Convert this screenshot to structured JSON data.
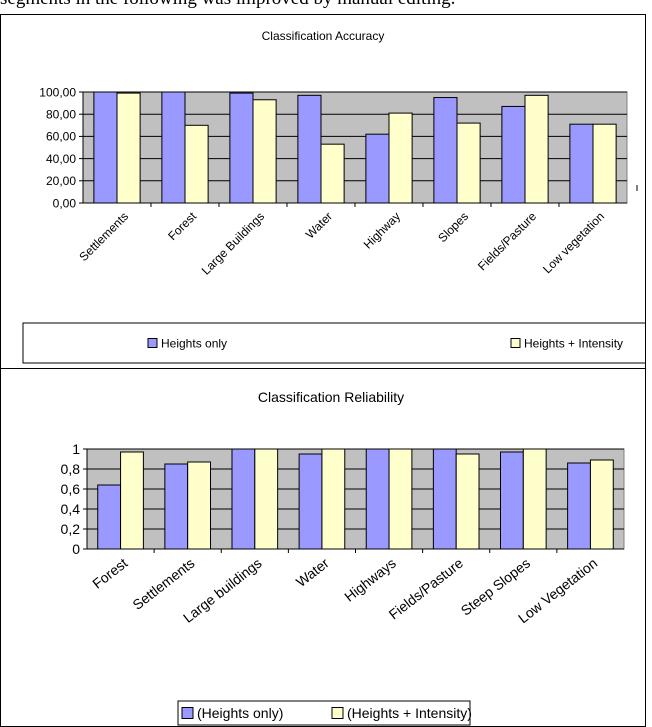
{
  "caption": "segments in the following was improved by manual editing.",
  "colors": {
    "heights_only": "#9999ff",
    "heights_intensity": "#ffffcc",
    "plot_area": "#c0c0c0",
    "bar_stroke": "#000000"
  },
  "chart_data": [
    {
      "type": "bar",
      "title": "Classification Accuracy",
      "categories": [
        "Settlements",
        "Forest",
        "Large Buildings",
        "Water",
        "Highway",
        "Slopes",
        "Fields/Pasture",
        "Low vegetation"
      ],
      "series": [
        {
          "name": "Heights only",
          "values": [
            100,
            100,
            99,
            97,
            62,
            95,
            87,
            71
          ]
        },
        {
          "name": "Heights + Intensity",
          "values": [
            99,
            70,
            93,
            53,
            81,
            72,
            97,
            71
          ]
        }
      ],
      "yticks": [
        "0,00",
        "20,00",
        "40,00",
        "60,00",
        "80,00",
        "100,00"
      ],
      "ylim": [
        0,
        100
      ],
      "grid": true,
      "legend": "bottom"
    },
    {
      "type": "bar",
      "title": "Classification Reliability",
      "categories": [
        "Forest",
        "Settlements",
        "Large buildings",
        "Water",
        "Highways",
        "Fields/Pasture",
        "Steep Slopes",
        "Low Vegetation"
      ],
      "series": [
        {
          "name": "(Heights only)",
          "values": [
            0.64,
            0.85,
            1.0,
            0.95,
            1.0,
            1.0,
            0.97,
            0.86
          ]
        },
        {
          "name": "(Heights + Intensity)",
          "values": [
            0.97,
            0.87,
            1.0,
            1.0,
            1.0,
            0.95,
            1.0,
            0.89
          ]
        }
      ],
      "yticks": [
        "0",
        "0,2",
        "0,4",
        "0,6",
        "0,8",
        "1"
      ],
      "ylim": [
        0,
        1
      ],
      "grid": true,
      "legend": "bottom"
    }
  ]
}
